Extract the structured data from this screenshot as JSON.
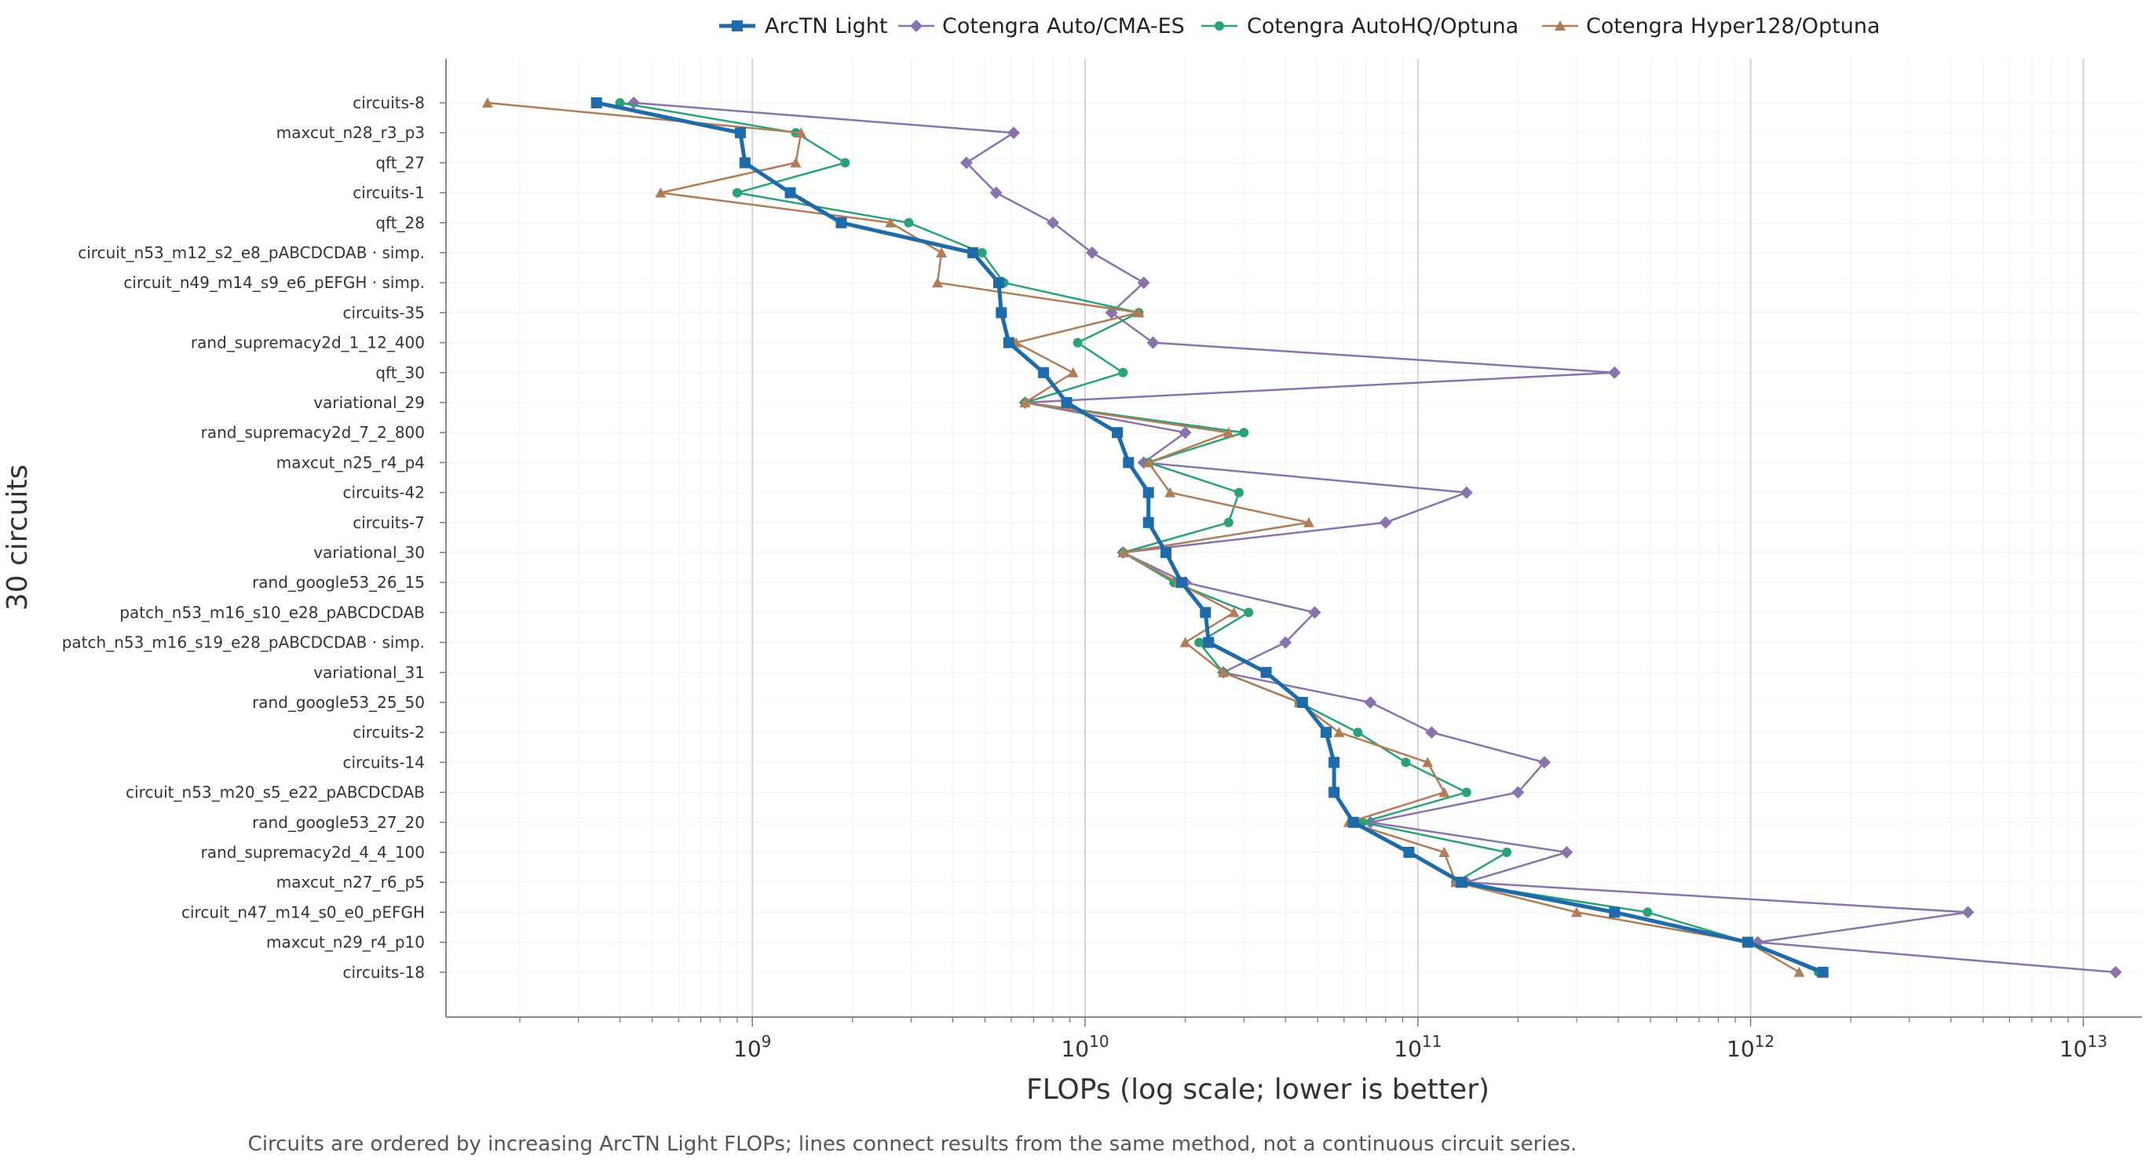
{
  "chart_data": {
    "type": "line",
    "orientation": "horizontal",
    "xlabel": "FLOPs (log scale; lower is better)",
    "ylabel": "30 circuits",
    "caption": "Circuits are ordered by increasing ArcTN Light FLOPs; lines connect results from the same method, not a continuous circuit series.",
    "x_scale": "log",
    "xlim": [
      120000000,
      15000000000000
    ],
    "x_ticks": [
      {
        "value": 1000000000,
        "base": "10",
        "exp": "9"
      },
      {
        "value": 10000000000,
        "base": "10",
        "exp": "10"
      },
      {
        "value": 100000000000,
        "base": "10",
        "exp": "11"
      },
      {
        "value": 1000000000000,
        "base": "10",
        "exp": "12"
      },
      {
        "value": 10000000000000,
        "base": "10",
        "exp": "13"
      }
    ],
    "grid": true,
    "legend_position": "top",
    "categories": [
      "circuits-8",
      "maxcut_n28_r3_p3",
      "qft_27",
      "circuits-1",
      "qft_28",
      "circuit_n53_m12_s2_e8_pABCDCDAB · simp.",
      "circuit_n49_m14_s9_e6_pEFGH · simp.",
      "circuits-35",
      "rand_supremacy2d_1_12_400",
      "qft_30",
      "variational_29",
      "rand_supremacy2d_7_2_800",
      "maxcut_n25_r4_p4",
      "circuits-42",
      "circuits-7",
      "variational_30",
      "rand_google53_26_15",
      "patch_n53_m16_s10_e28_pABCDCDAB",
      "patch_n53_m16_s19_e28_pABCDCDAB · simp.",
      "variational_31",
      "rand_google53_25_50",
      "circuits-2",
      "circuits-14",
      "circuit_n53_m20_s5_e22_pABCDCDAB",
      "rand_google53_27_20",
      "rand_supremacy2d_4_4_100",
      "maxcut_n27_r6_p5",
      "circuit_n47_m14_s0_e0_pEFGH",
      "maxcut_n29_r4_p10",
      "circuits-18"
    ],
    "series": [
      {
        "name": "ArcTN Light",
        "color": "#1f6aa8",
        "marker": "square",
        "values": [
          340000000.0,
          920000000.0,
          950000000.0,
          1300000000.0,
          1850000000.0,
          4600000000.0,
          5500000000.0,
          5600000000.0,
          5900000000.0,
          7500000000.0,
          8800000000.0,
          12500000000.0,
          13500000000.0,
          15500000000.0,
          15500000000.0,
          17500000000.0,
          19500000000.0,
          23000000000.0,
          23500000000.0,
          35000000000.0,
          45000000000.0,
          53000000000.0,
          56000000000.0,
          56000000000.0,
          64000000000.0,
          94000000000.0,
          135000000000.0,
          390000000000.0,
          980000000000.0,
          1650000000000.0
        ]
      },
      {
        "name": "Cotengra Auto/CMA-ES",
        "color": "#8a73ad",
        "marker": "diamond",
        "values": [
          440000000.0,
          6100000000.0,
          4400000000.0,
          5400000000.0,
          8000000000.0,
          10500000000.0,
          15000000000.0,
          12000000000.0,
          16000000000.0,
          390000000000.0,
          6600000000.0,
          20000000000.0,
          15000000000.0,
          140000000000.0,
          80000000000.0,
          13000000000.0,
          20000000000.0,
          49000000000.0,
          40000000000.0,
          26000000000.0,
          72000000000.0,
          110000000000.0,
          240000000000.0,
          200000000000.0,
          72000000000.0,
          280000000000.0,
          140000000000.0,
          4500000000000.0,
          1050000000000.0,
          12500000000000.0
        ]
      },
      {
        "name": "Cotengra AutoHQ/Optuna",
        "color": "#2aa17a",
        "marker": "circle",
        "values": [
          400000000.0,
          1350000000.0,
          1900000000.0,
          900000000.0,
          2950000000.0,
          4900000000.0,
          5700000000.0,
          14500000000.0,
          9500000000.0,
          13000000000.0,
          6600000000.0,
          30000000000.0,
          15500000000.0,
          29000000000.0,
          27000000000.0,
          13000000000.0,
          18500000000.0,
          31000000000.0,
          22000000000.0,
          26000000000.0,
          44000000000.0,
          66000000000.0,
          92000000000.0,
          140000000000.0,
          68000000000.0,
          185000000000.0,
          130000000000.0,
          490000000000.0,
          980000000000.0,
          1600000000000.0
        ]
      },
      {
        "name": "Cotengra Hyper128/Optuna",
        "color": "#b07d58",
        "marker": "triangle",
        "values": [
          160000000.0,
          1400000000.0,
          1350000000.0,
          530000000.0,
          2600000000.0,
          3700000000.0,
          3600000000.0,
          14500000000.0,
          6200000000.0,
          9200000000.0,
          6600000000.0,
          27000000000.0,
          15500000000.0,
          18000000000.0,
          47000000000.0,
          13000000000.0,
          19000000000.0,
          28000000000.0,
          20000000000.0,
          26000000000.0,
          44000000000.0,
          58000000000.0,
          107000000000.0,
          120000000000.0,
          62000000000.0,
          120000000000.0,
          130000000000.0,
          300000000000.0,
          980000000000.0,
          1400000000000.0
        ]
      }
    ]
  }
}
